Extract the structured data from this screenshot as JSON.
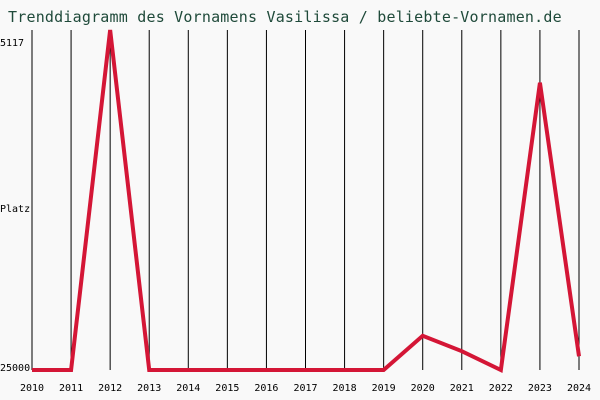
{
  "title": "Trenddiagramm des Vornamens Vasilissa / beliebte-Vornamen.de",
  "chart_data": {
    "type": "line",
    "title": "Trenddiagramm des Vornamens Vasilissa / beliebte-Vornamen.de",
    "xlabel": "",
    "ylabel": "Platz",
    "x": [
      2010,
      2011,
      2012,
      2013,
      2014,
      2015,
      2016,
      2017,
      2018,
      2019,
      2020,
      2021,
      2022,
      2023,
      2024
    ],
    "series": [
      {
        "values": [
          25000,
          25000,
          5117,
          25000,
          25000,
          25000,
          25000,
          25000,
          25000,
          25000,
          23000,
          23900,
          25000,
          8200,
          24200
        ]
      }
    ],
    "ylim": [
      25000,
      5117
    ],
    "y_ticks": [
      "5117",
      "25000"
    ],
    "grid": "vertical",
    "line_color": "#d41636"
  }
}
